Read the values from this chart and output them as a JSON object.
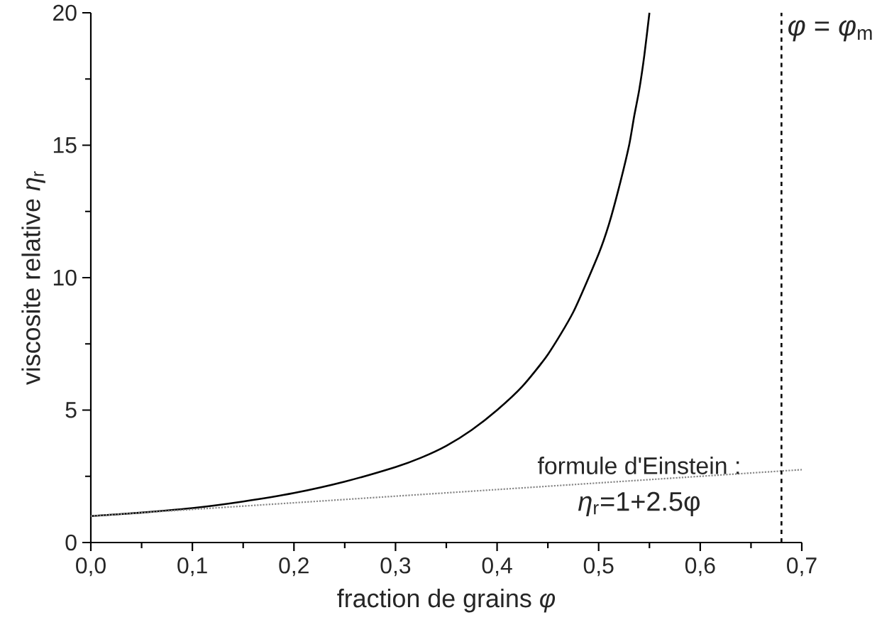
{
  "chart_data": {
    "type": "line",
    "xlabel": "fraction de grains *φ*",
    "ylabel": "viscosite relative *η*$_{r}$",
    "series": [
      {
        "x": [
          0,
          0.05,
          0.1,
          0.15,
          0.2,
          0.25,
          0.3,
          0.325,
          0.35,
          0.375,
          0.4,
          0.425,
          0.45,
          0.475,
          0.5,
          0.51,
          0.52,
          0.53,
          0.535,
          0.54,
          0.545,
          0.55
        ],
        "values": [
          1.0,
          1.13,
          1.3,
          1.55,
          1.87,
          2.3,
          2.85,
          3.2,
          3.65,
          4.25,
          5.0,
          5.9,
          7.1,
          8.7,
          10.9,
          12.0,
          13.4,
          15.0,
          16.1,
          17.1,
          18.4,
          20.0
        ],
        "color": "#000000",
        "line_style": "solid"
      },
      {
        "x": [
          0,
          0.7
        ],
        "values": [
          1,
          2.75
        ],
        "color": "#888888",
        "line_style": "dotted"
      }
    ],
    "xlim": [
      0,
      0.7
    ],
    "ylim": [
      0,
      20
    ],
    "xticks": [
      {
        "value": 0,
        "label": "0,0"
      },
      {
        "value": 0.05,
        "label": null
      },
      {
        "value": 0.1,
        "label": "0,1"
      },
      {
        "value": 0.15,
        "label": null
      },
      {
        "value": 0.2,
        "label": "0,2"
      },
      {
        "value": 0.25,
        "label": null
      },
      {
        "value": 0.3,
        "label": "0,3"
      },
      {
        "value": 0.35,
        "label": null
      },
      {
        "value": 0.4,
        "label": "0,4"
      },
      {
        "value": 0.45,
        "label": null
      },
      {
        "value": 0.5,
        "label": "0,5"
      },
      {
        "value": 0.55,
        "label": null
      },
      {
        "value": 0.6,
        "label": "0,6"
      },
      {
        "value": 0.65,
        "label": null
      },
      {
        "value": 0.7,
        "label": "0,7"
      }
    ],
    "yticks": [
      0,
      {
        "value": 2.5,
        "label": null
      },
      5,
      {
        "value": 7.5,
        "label": null
      },
      10,
      {
        "value": 12.5,
        "label": null
      },
      15,
      {
        "value": 17.5,
        "label": null
      },
      20
    ],
    "ref_lines": [
      {
        "axis": "x",
        "value": 0.68,
        "label": "*φ* = *φ*$_{m}$",
        "color": "#000000",
        "line_style": "dashed"
      }
    ],
    "annotations": [
      {
        "text": "formule d'Einstein :",
        "x": 0.54,
        "y": 2.35
      },
      {
        "text": "*η*$_{r}$=1+2.5φ",
        "x": 0.54,
        "y": 2.35
      }
    ]
  }
}
